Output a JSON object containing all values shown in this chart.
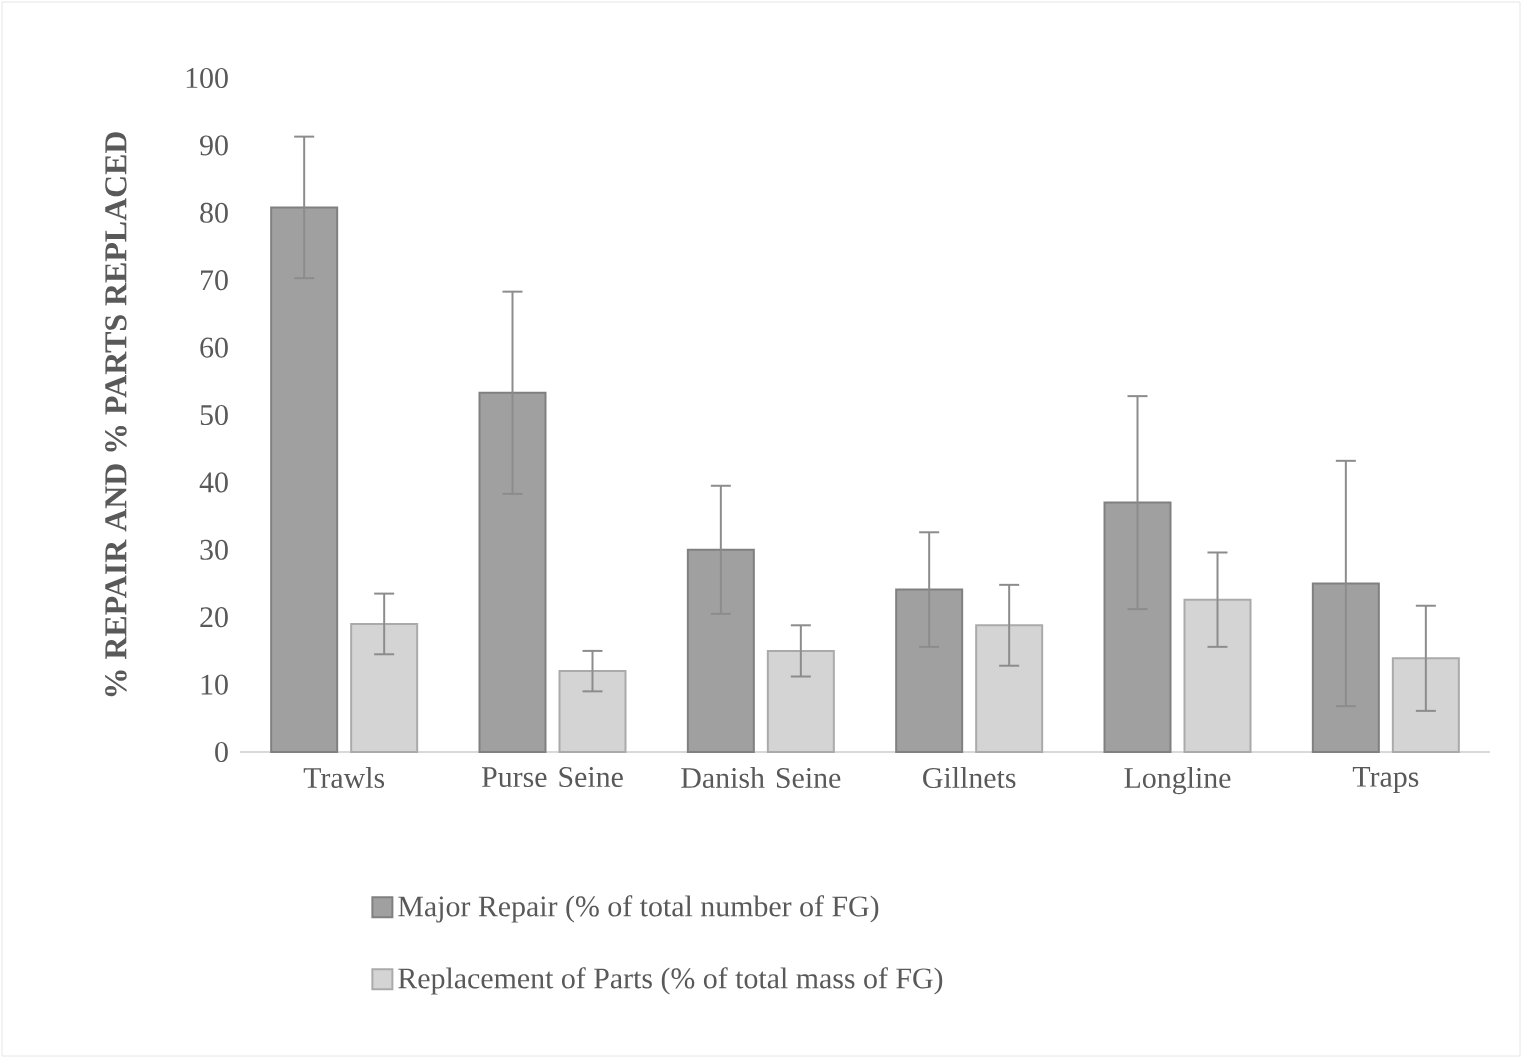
{
  "chart_data": {
    "type": "bar",
    "ylabel": "% REPAIR AND % PARTS REPLACED",
    "categories": [
      "Trawls",
      "Purse Seine",
      "Danish Seine",
      "Gillnets",
      "Longline",
      "Traps"
    ],
    "series": [
      {
        "name": "Major Repair (% of total number of FG)",
        "color": "#a0a0a0",
        "values": [
          80.8,
          53.3,
          30,
          24.1,
          37,
          25
        ],
        "errors": [
          10.5,
          15,
          9.5,
          8.5,
          15.8,
          18.2
        ]
      },
      {
        "name": "Replacement of Parts (% of total mass of FG)",
        "color": "#d4d4d4",
        "values": [
          19,
          12,
          15,
          18.8,
          22.6,
          13.9
        ],
        "errors": [
          4.5,
          3,
          3.8,
          6,
          7,
          7.8
        ]
      }
    ],
    "ylim": [
      0,
      100
    ],
    "yticks": [
      0,
      10,
      20,
      30,
      40,
      50,
      60,
      70,
      80,
      90,
      100
    ],
    "legend": "bottom"
  }
}
